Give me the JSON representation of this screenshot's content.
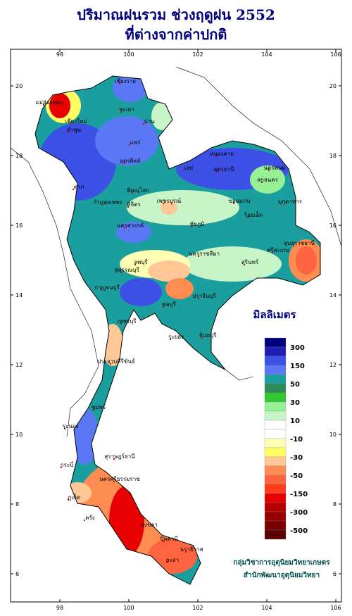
{
  "title": [
    "ปริมาณฝนรวม ช่วงฤดูฝน 2552",
    "ที่ต่างจากค่าปกติ"
  ],
  "longitudes": [
    98,
    100,
    102,
    104,
    106
  ],
  "latitudes": [
    20,
    18,
    16,
    14,
    12,
    10,
    8,
    6
  ],
  "provinces": [
    "เชียงราย",
    "แม่ฮ่องสอน",
    "พะเยา",
    "น่าน",
    "เชียงใหม่",
    "ลำพูน",
    "แพร่",
    "อุตรดิตถ์",
    "หนองคาย",
    "อุดรธานี",
    "นครพนม",
    "สกลนคร",
    "มุกดาหาร",
    "ขอนแก่น",
    "เลย",
    "ตาก",
    "พิษณุโลก",
    "เพชรบูรณ์",
    "กำแพงเพชร",
    "พิจิตร",
    "นครสวรรค์",
    "ชัยภูมิ",
    "ร้อยเอ็ด",
    "อุบลราชธานี",
    "ศรีสะเกษ",
    "นครราชสีมา",
    "สุรินทร์",
    "ลพบุรี",
    "สุพรรณบุรี",
    "กาญจนบุรี",
    "ชลบุรี",
    "ปราจีนบุรี",
    "ระยอง",
    "จันทบุรี",
    "เพชรบุรี",
    "ประจวบคีรีขันธ์",
    "ชุมพร",
    "ระนอง",
    "สุราษฎร์ธานี",
    "กระบี่",
    "นครศรีธรรมราช",
    "ภูเก็ต",
    "ตรัง",
    "สงขลา",
    "ปัตตานี",
    "ยะลา",
    "นราธิวาส"
  ],
  "legend": {
    "title": "มิลลิเมตร",
    "colors": [
      "#00007f",
      "#1e1eb4",
      "#3c50e6",
      "#5a78f5",
      "#1a9e9e",
      "#2e8b57",
      "#32c832",
      "#96f096",
      "#c8f5c8",
      "#ffffff",
      "#ffffff",
      "#ffffb4",
      "#ffff64",
      "#ffc896",
      "#ff8c50",
      "#ff6440",
      "#ff3c1e",
      "#e60000",
      "#b40000",
      "#960000",
      "#780000",
      "#5a0000"
    ],
    "labels": [
      300,
      150,
      50,
      30,
      10,
      -10,
      -30,
      -50,
      -150,
      -300,
      -500
    ]
  },
  "credit": [
    "กลุ่มวิชาการอุตุนิยมวิทยาเกษตร",
    "สำนักพัฒนาอุตุนิยมวิทยา"
  ]
}
